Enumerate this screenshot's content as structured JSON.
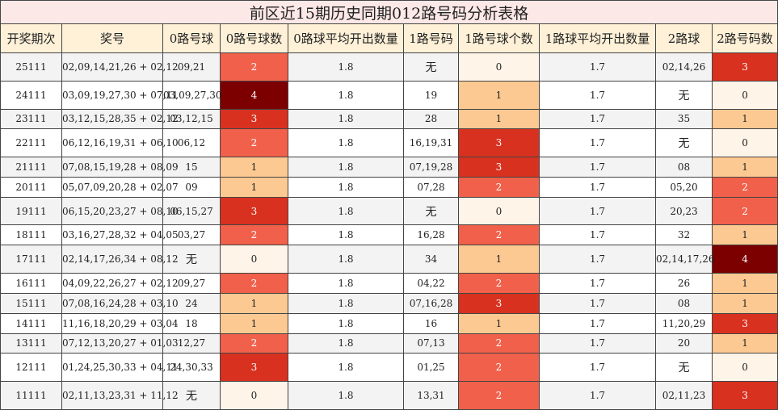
{
  "title": "前区近15期历史同期012路号码分析表格",
  "headers": [
    "开奖期次",
    "奖号",
    "0路号球",
    "0路号球数",
    "0路球平均开出数量",
    "1路号码",
    "1路号球个数",
    "1路球平均开出数量",
    "2路球",
    "2路号码数"
  ],
  "heat_colors": {
    "0": "#fff4e8",
    "1": "#fdc992",
    "2": "#f0604a",
    "3": "#d8311f",
    "4": "#7d0000"
  },
  "chart_data": {
    "type": "table",
    "columns": [
      "开奖期次",
      "奖号",
      "0路号球",
      "0路号球数",
      "0路球平均开出数量",
      "1路号码",
      "1路号球个数",
      "1路球平均开出数量",
      "2路球",
      "2路号码数"
    ],
    "rows": [
      [
        "25111",
        "02,09,14,21,26 + 02,12",
        "09,21",
        2,
        "1.8",
        "无",
        0,
        "1.7",
        "02,14,26",
        3
      ],
      [
        "24111",
        "03,09,19,27,30 + 07,11",
        "03,09,27,30",
        4,
        "1.8",
        "19",
        1,
        "1.7",
        "无",
        0
      ],
      [
        "23111",
        "03,12,15,28,35 + 02,12",
        "03,12,15",
        3,
        "1.8",
        "28",
        1,
        "1.7",
        "35",
        1
      ],
      [
        "22111",
        "06,12,16,19,31 + 06,10",
        "06,12",
        2,
        "1.8",
        "16,19,31",
        3,
        "1.7",
        "无",
        0
      ],
      [
        "21111",
        "07,08,15,19,28 + 08,09",
        "15",
        1,
        "1.8",
        "07,19,28",
        3,
        "1.7",
        "08",
        1
      ],
      [
        "20111",
        "05,07,09,20,28 + 02,07",
        "09",
        1,
        "1.8",
        "07,28",
        2,
        "1.7",
        "05,20",
        2
      ],
      [
        "19111",
        "06,15,20,23,27 + 08,10",
        "06,15,27",
        3,
        "1.8",
        "无",
        0,
        "1.7",
        "20,23",
        2
      ],
      [
        "18111",
        "03,16,27,28,32 + 04,05",
        "03,27",
        2,
        "1.8",
        "16,28",
        2,
        "1.7",
        "32",
        1
      ],
      [
        "17111",
        "02,14,17,26,34 + 08,12",
        "无",
        0,
        "1.8",
        "34",
        1,
        "1.7",
        "02,14,17,26",
        4
      ],
      [
        "16111",
        "04,09,22,26,27 + 02,12",
        "09,27",
        2,
        "1.8",
        "04,22",
        2,
        "1.7",
        "26",
        1
      ],
      [
        "15111",
        "07,08,16,24,28 + 03,10",
        "24",
        1,
        "1.8",
        "07,16,28",
        3,
        "1.7",
        "08",
        1
      ],
      [
        "14111",
        "11,16,18,20,29 + 03,04",
        "18",
        1,
        "1.8",
        "16",
        1,
        "1.7",
        "11,20,29",
        3
      ],
      [
        "13111",
        "07,12,13,20,27 + 01,03",
        "12,27",
        2,
        "1.8",
        "07,13",
        2,
        "1.7",
        "20",
        1
      ],
      [
        "12111",
        "01,24,25,30,33 + 04,11",
        "24,30,33",
        3,
        "1.8",
        "01,25",
        2,
        "1.7",
        "无",
        0
      ],
      [
        "11111",
        "02,11,13,23,31 + 11,12",
        "无",
        0,
        "1.8",
        "13,31",
        2,
        "1.7",
        "02,11,23",
        3
      ]
    ]
  }
}
